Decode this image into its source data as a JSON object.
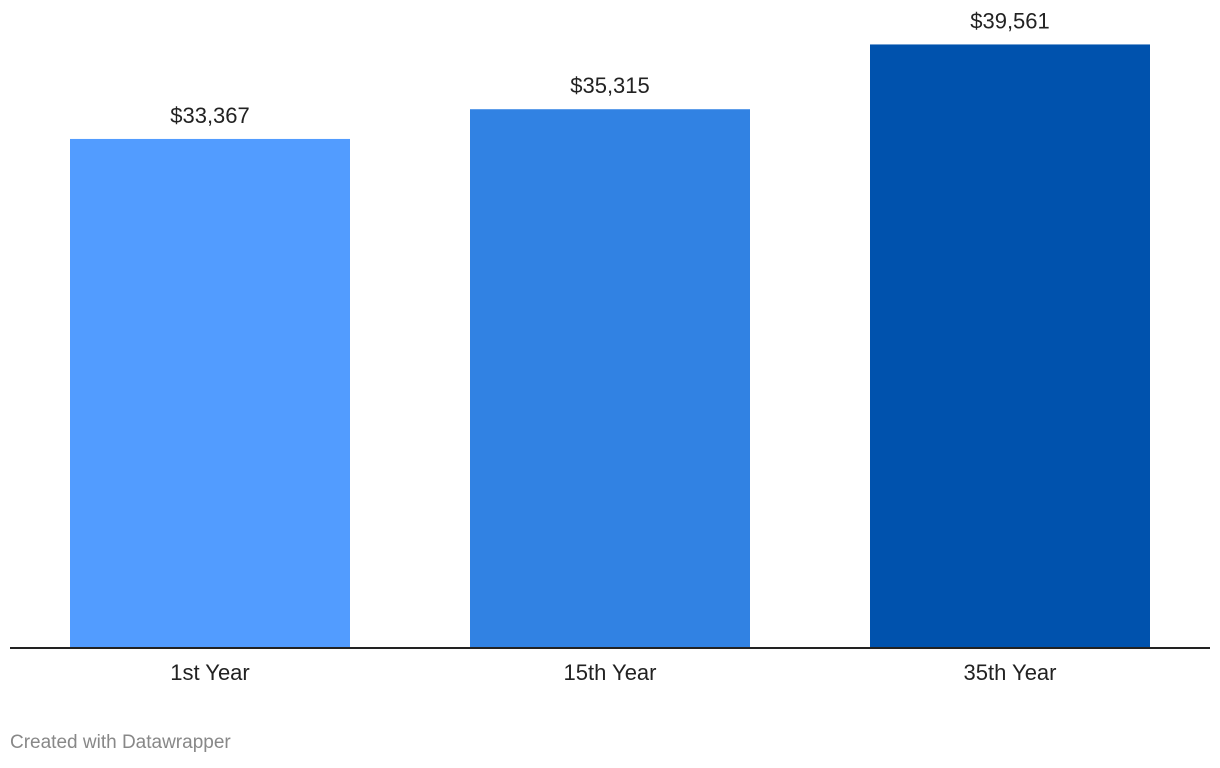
{
  "chart_data": {
    "type": "bar",
    "categories": [
      "1st Year",
      "15th Year",
      "35th Year"
    ],
    "values": [
      33367,
      35315,
      39561
    ],
    "value_labels": [
      "$33,367",
      "$35,315",
      "$39,561"
    ],
    "colors": [
      "#529cff",
      "#3182e3",
      "#0052ad"
    ],
    "ylim": [
      0,
      40836
    ],
    "grid": false,
    "legend": "none",
    "axis_color": "#222222"
  },
  "footer": {
    "credit": "Created with Datawrapper"
  }
}
